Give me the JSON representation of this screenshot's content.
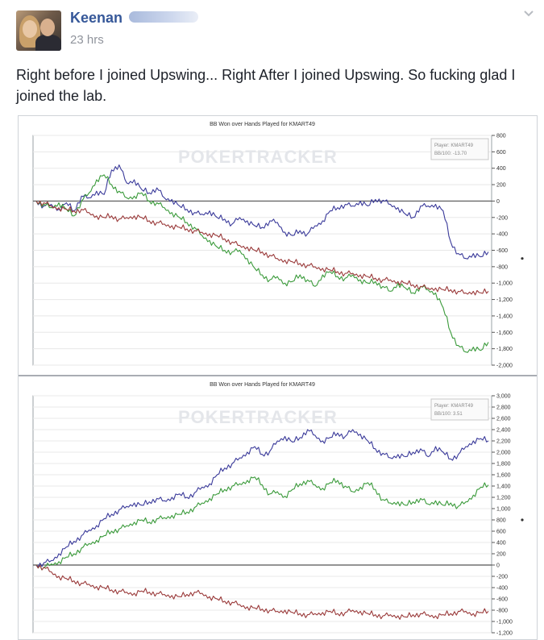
{
  "post": {
    "author": "Keenan",
    "time": "23 hrs",
    "text": "Right before I joined Upswing... Right After I joined Upswing. So fucking glad I joined the lab."
  },
  "icons": {
    "menu": "chevron-down-icon"
  },
  "chart_data": [
    {
      "type": "line",
      "title": "BB Won over Hands Played for KMART49",
      "watermark": "POKERTRACKER",
      "legend": [
        "Player: KMART49",
        "BB/100: -13.70"
      ],
      "legend_position": "top-right",
      "yticks": [
        "800",
        "600",
        "400",
        "200",
        "0",
        "-200",
        "-400",
        "-600",
        "-800",
        "-1,000",
        "-1,200",
        "-1,400",
        "-1,600",
        "-1,800",
        "-2,000"
      ],
      "ylim": [
        -2000,
        800
      ],
      "grid": true,
      "series": [
        {
          "color": "#3a3a9a",
          "values": [
            0,
            -60,
            -40,
            -100,
            -20,
            -120,
            60,
            40,
            120,
            80,
            380,
            440,
            220,
            260,
            140,
            100,
            160,
            40,
            20,
            -60,
            -100,
            -140,
            -160,
            -120,
            -200,
            -220,
            -280,
            -200,
            -240,
            -300,
            -320,
            -240,
            -260,
            -380,
            -420,
            -360,
            -400,
            -300,
            -240,
            -120,
            -80,
            -40,
            -60,
            0,
            -60,
            20,
            10,
            -40,
            -80,
            -160,
            -200,
            -60,
            -60,
            -40,
            -120,
            -500,
            -640,
            -700,
            -640,
            -680,
            -620
          ]
        },
        {
          "color": "#3a9a3a",
          "values": [
            0,
            -40,
            -80,
            -20,
            -100,
            -180,
            0,
            100,
            260,
            320,
            200,
            120,
            40,
            60,
            100,
            0,
            -20,
            -80,
            -140,
            -200,
            -260,
            -320,
            -420,
            -480,
            -560,
            -600,
            -620,
            -600,
            -700,
            -820,
            -900,
            -960,
            -920,
            -1000,
            -980,
            -900,
            -960,
            -1040,
            -900,
            -860,
            -920,
            -940,
            -900,
            -960,
            -1000,
            -980,
            -1040,
            -1100,
            -1000,
            -1060,
            -1120,
            -1040,
            -1080,
            -1120,
            -1300,
            -1600,
            -1760,
            -1840,
            -1780,
            -1820,
            -1720
          ]
        },
        {
          "color": "#9a3a3a",
          "values": [
            0,
            -20,
            -60,
            -80,
            -100,
            -120,
            -100,
            -140,
            -180,
            -200,
            -180,
            -220,
            -200,
            -180,
            -200,
            -240,
            -260,
            -280,
            -300,
            -320,
            -340,
            -360,
            -380,
            -400,
            -420,
            -460,
            -500,
            -540,
            -560,
            -600,
            -620,
            -660,
            -700,
            -720,
            -740,
            -760,
            -780,
            -800,
            -820,
            -840,
            -860,
            -880,
            -880,
            -900,
            -920,
            -940,
            -960,
            -960,
            -980,
            -1000,
            -1020,
            -1040,
            -1060,
            -1060,
            -1080,
            -1080,
            -1100,
            -1120,
            -1100,
            -1120,
            -1100
          ]
        }
      ]
    },
    {
      "type": "line",
      "title": "BB Won over Hands Played for KMART49",
      "watermark": "POKERTRACKER",
      "legend": [
        "Player: KMART49",
        "BB/100: 3.51"
      ],
      "legend_position": "top-right",
      "yticks": [
        "3,000",
        "2,800",
        "2,600",
        "2,400",
        "2,200",
        "2,000",
        "1,800",
        "1,600",
        "1,400",
        "1,200",
        "1,000",
        "800",
        "600",
        "400",
        "200",
        "0",
        "-200",
        "-400",
        "-600",
        "-800",
        "-1,000",
        "-1,200"
      ],
      "ylim": [
        -1200,
        3000
      ],
      "grid": true,
      "series": [
        {
          "color": "#3a3a9a",
          "values": [
            0,
            40,
            80,
            200,
            320,
            420,
            520,
            620,
            700,
            820,
            900,
            980,
            1040,
            1100,
            1060,
            1120,
            1180,
            1140,
            1200,
            1260,
            1200,
            1280,
            1380,
            1440,
            1600,
            1720,
            1800,
            1900,
            2000,
            2100,
            1960,
            2020,
            2200,
            2280,
            2180,
            2260,
            2400,
            2300,
            2200,
            2260,
            2340,
            2280,
            2400,
            2320,
            2200,
            2060,
            1980,
            1900,
            1960,
            1920,
            2000,
            2060,
            1920,
            2100,
            2000,
            1880,
            1960,
            2100,
            2200,
            2240,
            2200
          ]
        },
        {
          "color": "#3a9a3a",
          "values": [
            0,
            -40,
            20,
            60,
            140,
            200,
            300,
            380,
            440,
            520,
            600,
            640,
            700,
            760,
            800,
            760,
            820,
            840,
            880,
            900,
            940,
            1020,
            1100,
            1180,
            1260,
            1340,
            1400,
            1440,
            1500,
            1560,
            1420,
            1260,
            1300,
            1220,
            1340,
            1440,
            1500,
            1420,
            1360,
            1460,
            1500,
            1400,
            1300,
            1380,
            1460,
            1340,
            1160,
            1100,
            1120,
            1060,
            1120,
            1180,
            1080,
            1140,
            1060,
            1100,
            1040,
            1120,
            1240,
            1380,
            1420
          ]
        },
        {
          "color": "#9a3a3a",
          "values": [
            0,
            -40,
            -120,
            -200,
            -240,
            -280,
            -320,
            -340,
            -380,
            -400,
            -440,
            -460,
            -480,
            -500,
            -460,
            -480,
            -500,
            -520,
            -540,
            -560,
            -520,
            -480,
            -500,
            -560,
            -600,
            -640,
            -660,
            -700,
            -740,
            -760,
            -780,
            -800,
            -820,
            -800,
            -840,
            -860,
            -880,
            -860,
            -840,
            -820,
            -860,
            -840,
            -800,
            -820,
            -860,
            -880,
            -900,
            -880,
            -900,
            -920,
            -880,
            -860,
            -880,
            -900,
            -880,
            -860,
            -820,
            -820,
            -860,
            -840,
            -820
          ]
        }
      ]
    }
  ]
}
